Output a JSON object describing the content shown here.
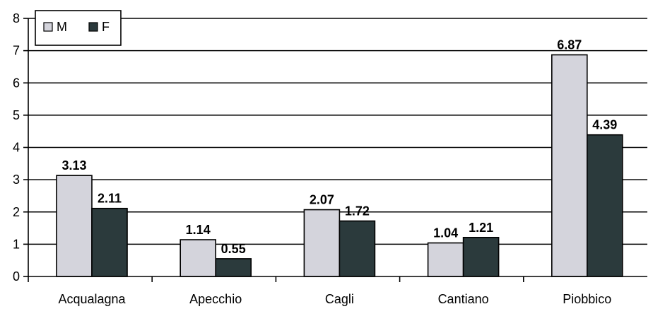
{
  "chart_data": {
    "type": "bar",
    "categories": [
      "Acqualagna",
      "Apecchio",
      "Cagli",
      "Cantiano",
      "Piobbico"
    ],
    "series": [
      {
        "name": "M",
        "values": [
          3.13,
          1.14,
          2.07,
          1.04,
          6.87
        ],
        "labels": [
          "3.13",
          "1.14",
          "2.07",
          "1.04",
          "6.87"
        ],
        "color": "#d4d4dc"
      },
      {
        "name": "F",
        "values": [
          2.11,
          0.55,
          1.72,
          1.21,
          4.39
        ],
        "labels": [
          "2.11",
          "0.55",
          "1.72",
          "1.21",
          "4.39"
        ],
        "color": "#2b3a3c"
      }
    ],
    "ylim": [
      0,
      8
    ],
    "yticks": [
      0,
      1,
      2,
      3,
      4,
      5,
      6,
      7,
      8
    ],
    "grid": true,
    "legend_position": "top-left",
    "title": "",
    "xlabel": "",
    "ylabel": ""
  }
}
